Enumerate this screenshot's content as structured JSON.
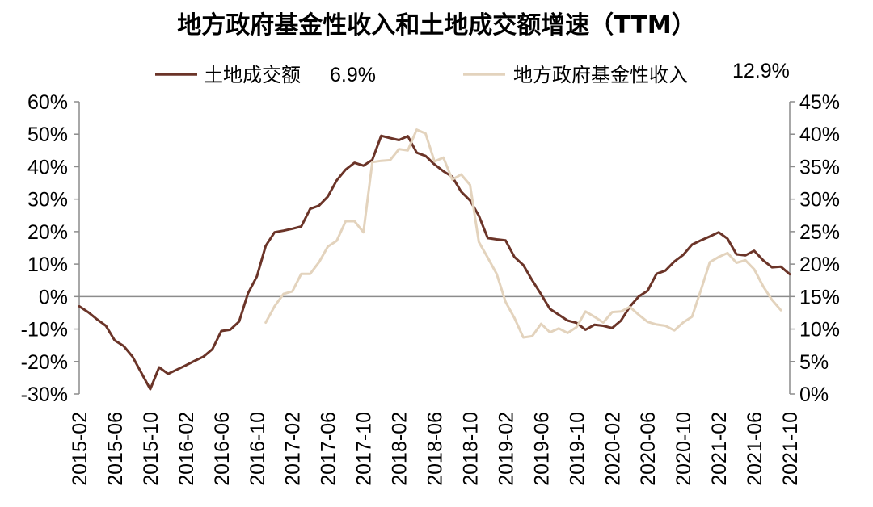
{
  "chart_data": {
    "type": "line",
    "title": "地方政府基金性收入和土地成交额增速（TTM）",
    "legend": [
      {
        "name": "土地成交额",
        "value": "6.9%",
        "color": "#6B3428"
      },
      {
        "name": "地方政府基金性收入",
        "value": "12.9%",
        "color": "#E3D3BD"
      }
    ],
    "xlabel": "",
    "ylabel": "",
    "y_left": {
      "min": -30,
      "max": 60,
      "step": 10,
      "unit": "%"
    },
    "y_right": {
      "min": 0,
      "max": 45,
      "step": 5,
      "unit": "%"
    },
    "grid": false,
    "legend_position": "top",
    "x_tick_labels": [
      "2015-02",
      "2015-06",
      "2015-10",
      "2016-02",
      "2016-06",
      "2016-10",
      "2017-02",
      "2017-06",
      "2017-10",
      "2018-02",
      "2018-06",
      "2018-10",
      "2019-02",
      "2019-06",
      "2019-10",
      "2020-02",
      "2020-06",
      "2020-10",
      "2021-02",
      "2021-06",
      "2021-10"
    ],
    "x_months": [
      "2015-02",
      "2015-03",
      "2015-04",
      "2015-05",
      "2015-06",
      "2015-07",
      "2015-08",
      "2015-09",
      "2015-10",
      "2015-11",
      "2015-12",
      "2016-01",
      "2016-02",
      "2016-03",
      "2016-04",
      "2016-05",
      "2016-06",
      "2016-07",
      "2016-08",
      "2016-09",
      "2016-10",
      "2016-11",
      "2016-12",
      "2017-01",
      "2017-02",
      "2017-03",
      "2017-04",
      "2017-05",
      "2017-06",
      "2017-07",
      "2017-08",
      "2017-09",
      "2017-10",
      "2017-11",
      "2017-12",
      "2018-01",
      "2018-02",
      "2018-03",
      "2018-04",
      "2018-05",
      "2018-06",
      "2018-07",
      "2018-08",
      "2018-09",
      "2018-10",
      "2018-11",
      "2018-12",
      "2019-01",
      "2019-02",
      "2019-03",
      "2019-04",
      "2019-05",
      "2019-06",
      "2019-07",
      "2019-08",
      "2019-09",
      "2019-10",
      "2019-11",
      "2019-12",
      "2020-01",
      "2020-02",
      "2020-03",
      "2020-04",
      "2020-05",
      "2020-06",
      "2020-07",
      "2020-08",
      "2020-09",
      "2020-10",
      "2020-11",
      "2020-12",
      "2021-01",
      "2021-02",
      "2021-03",
      "2021-04",
      "2021-05",
      "2021-06",
      "2021-07",
      "2021-08",
      "2021-09",
      "2021-10"
    ],
    "series": [
      {
        "name": "土地成交额",
        "axis": "left",
        "color": "#6B3428",
        "start": "2015-02",
        "values": [
          -3,
          -4.8,
          -7,
          -9,
          -13.5,
          -15.2,
          -18.5,
          -23.5,
          -28.5,
          -21.8,
          -23.8,
          -22.5,
          -21.2,
          -19.8,
          -18.5,
          -16.2,
          -10.6,
          -10.2,
          -7.7,
          1,
          6.2,
          15.6,
          19.8,
          20.3,
          20.9,
          21.6,
          27,
          28,
          30.8,
          35.8,
          39.1,
          41.2,
          40.3,
          42.1,
          49.5,
          48.8,
          48.2,
          49.4,
          44.3,
          43.3,
          40.7,
          38.6,
          36.9,
          32.3,
          29.6,
          24.9,
          18,
          17.6,
          17.3,
          12.2,
          9.7,
          5,
          0.7,
          -3.8,
          -5.6,
          -7.4,
          -8.1,
          -10.2,
          -8.7,
          -9,
          -9.7,
          -7.4,
          -3.1,
          0,
          1.8,
          7,
          8,
          10.8,
          12.8,
          16,
          17.3,
          18.5,
          19.8,
          17.8,
          13,
          12.7,
          14.1,
          11.2,
          9,
          9.2,
          6.9
        ]
      },
      {
        "name": "地方政府基金性收入",
        "axis": "right",
        "color": "#E3D3BD",
        "start": "2016-11",
        "values": [
          11,
          13.5,
          15.4,
          15.8,
          18.5,
          18.5,
          20.3,
          22.7,
          23.6,
          26.6,
          26.6,
          24.9,
          35.7,
          35.9,
          36,
          37.7,
          37.5,
          40.7,
          40.1,
          35.8,
          36.4,
          33,
          33.8,
          32.2,
          23.4,
          21,
          18.5,
          14.2,
          11.7,
          8.7,
          8.9,
          10.8,
          9.5,
          10.1,
          9.4,
          10.3,
          12.7,
          11.9,
          11,
          12.6,
          12.7,
          13.4,
          12.2,
          11.1,
          10.7,
          10.5,
          9.8,
          11,
          11.9,
          16,
          20.3,
          21.1,
          21.7,
          20.2,
          20.6,
          19.2,
          16.6,
          14.5,
          12.9
        ]
      }
    ]
  }
}
